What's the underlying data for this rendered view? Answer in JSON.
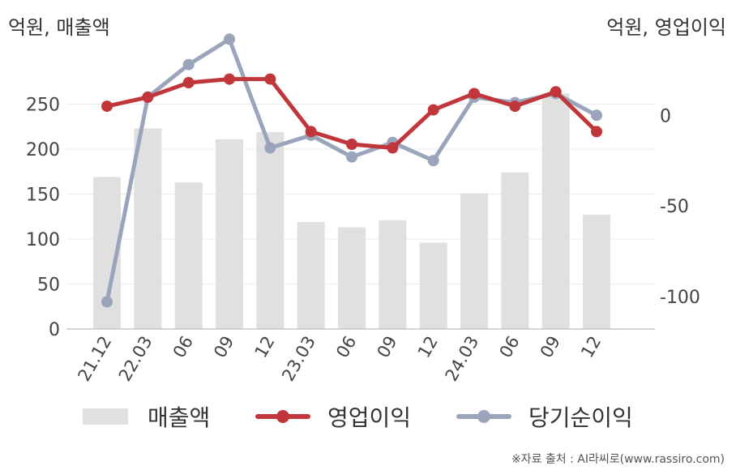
{
  "chart_data": {
    "type": "bar+line",
    "left_unit_label": "억원, 매출액",
    "right_unit_label": "억원, 영업이익",
    "categories": [
      "21.12",
      "22.03",
      "06",
      "09",
      "12",
      "23.03",
      "06",
      "09",
      "12",
      "24.03",
      "06",
      "09",
      "12"
    ],
    "left_axis": {
      "ticks": [
        0,
        50,
        100,
        150,
        200,
        250
      ],
      "ylim": [
        0,
        300
      ]
    },
    "right_axis": {
      "ticks": [
        -100,
        -50,
        0
      ],
      "ylim": [
        -118,
        31
      ]
    },
    "grid": true,
    "legend_position": "bottom",
    "series": [
      {
        "name": "매출액",
        "kind": "bar",
        "axis": "left",
        "color": "#e0e0e0",
        "values": [
          169,
          223,
          163,
          211,
          219,
          119,
          113,
          121,
          96,
          151,
          174,
          262,
          127
        ]
      },
      {
        "name": "영업이익",
        "kind": "line",
        "axis": "right",
        "color": "#c0363a",
        "values": [
          5,
          10,
          18,
          20,
          20,
          -9,
          -16,
          -18,
          3,
          12,
          5,
          13,
          -9
        ]
      },
      {
        "name": "당기순이익",
        "kind": "line",
        "axis": "right",
        "color": "#9aa4bb",
        "values": [
          -103,
          10,
          28,
          42,
          -18,
          -11,
          -23,
          -15,
          -25,
          10,
          7,
          12,
          0
        ]
      }
    ]
  },
  "source_note": "※자료 출처 : AI라씨로(www.rassiro.com)"
}
